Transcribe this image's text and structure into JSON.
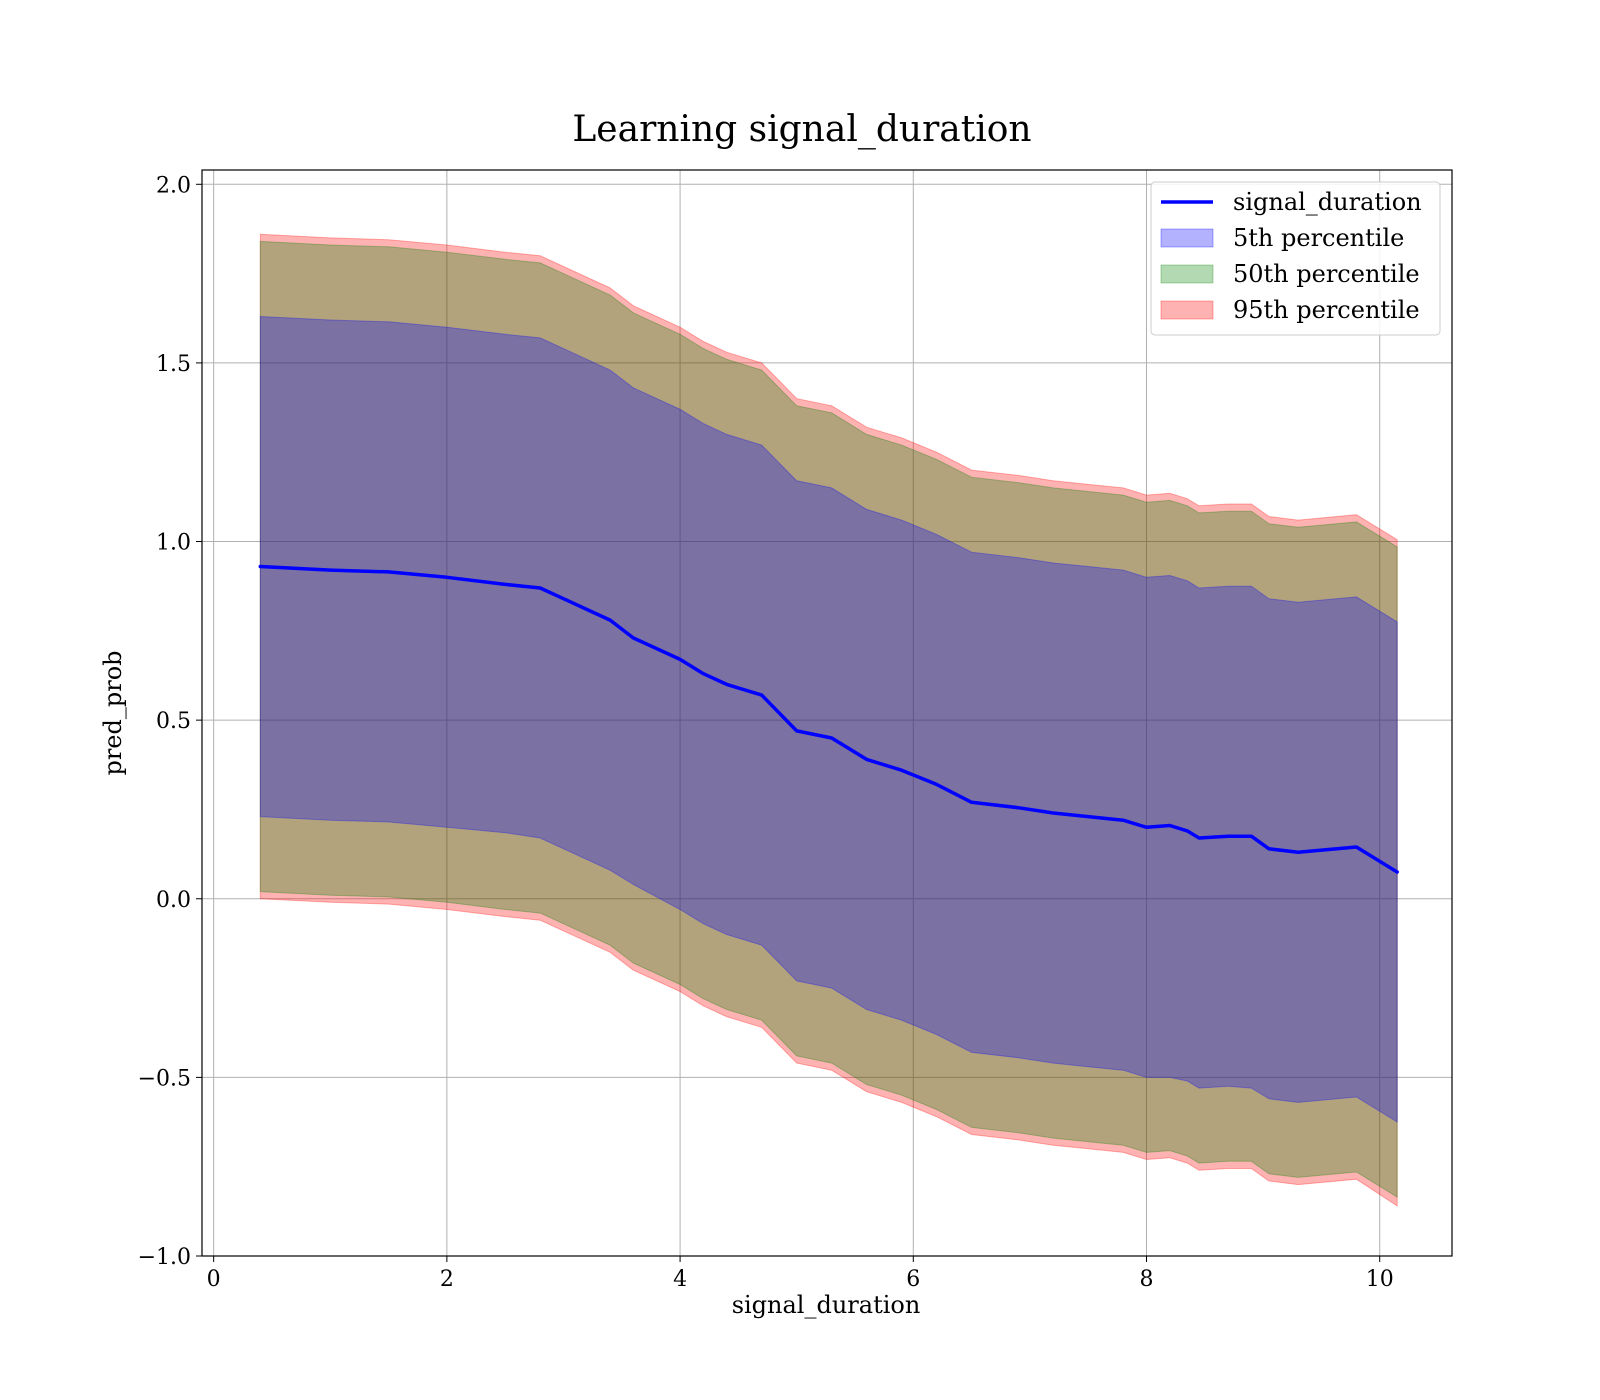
{
  "chart_data": {
    "type": "area",
    "title": "Learning signal_duration",
    "xlabel": "signal_duration",
    "ylabel": "pred_prob",
    "xlim": [
      -0.1,
      10.62
    ],
    "ylim": [
      -1.0,
      2.04
    ],
    "x_ticks": [
      0,
      2,
      4,
      6,
      8,
      10
    ],
    "y_ticks": [
      -1.0,
      -0.5,
      0.0,
      0.5,
      1.0,
      1.5,
      2.0
    ],
    "x_tick_labels": [
      "0",
      "2",
      "4",
      "6",
      "8",
      "10"
    ],
    "y_tick_labels": [
      "−1.0",
      "−0.5",
      "0.0",
      "0.5",
      "1.0",
      "1.5",
      "2.0"
    ],
    "grid": true,
    "legend_position": "top-right",
    "x": [
      0.4,
      1.0,
      1.5,
      2.0,
      2.5,
      2.8,
      3.0,
      3.4,
      3.6,
      4.0,
      4.2,
      4.4,
      4.7,
      5.0,
      5.3,
      5.6,
      5.9,
      6.2,
      6.5,
      6.9,
      7.2,
      7.5,
      7.8,
      8.0,
      8.2,
      8.35,
      8.45,
      8.7,
      8.9,
      9.05,
      9.3,
      9.8,
      10.15
    ],
    "series": [
      {
        "name": "signal_duration",
        "kind": "line",
        "color": "#0000ff",
        "values": [
          0.93,
          0.92,
          0.915,
          0.9,
          0.88,
          0.87,
          0.84,
          0.78,
          0.73,
          0.67,
          0.63,
          0.6,
          0.57,
          0.47,
          0.45,
          0.39,
          0.36,
          0.32,
          0.27,
          0.255,
          0.24,
          0.23,
          0.22,
          0.2,
          0.205,
          0.19,
          0.17,
          0.175,
          0.175,
          0.14,
          0.13,
          0.145,
          0.075
        ]
      },
      {
        "name": "5th percentile",
        "kind": "band",
        "color": "#0000ff",
        "lower": [
          0.23,
          0.22,
          0.215,
          0.2,
          0.185,
          0.17,
          0.14,
          0.08,
          0.04,
          -0.03,
          -0.07,
          -0.1,
          -0.13,
          -0.23,
          -0.25,
          -0.31,
          -0.34,
          -0.38,
          -0.43,
          -0.445,
          -0.46,
          -0.47,
          -0.48,
          -0.5,
          -0.5,
          -0.51,
          -0.53,
          -0.525,
          -0.53,
          -0.56,
          -0.57,
          -0.555,
          -0.625
        ],
        "upper": [
          1.63,
          1.62,
          1.615,
          1.6,
          1.58,
          1.57,
          1.54,
          1.48,
          1.43,
          1.37,
          1.33,
          1.3,
          1.27,
          1.17,
          1.15,
          1.09,
          1.06,
          1.02,
          0.97,
          0.955,
          0.94,
          0.93,
          0.92,
          0.9,
          0.905,
          0.89,
          0.87,
          0.875,
          0.875,
          0.84,
          0.83,
          0.845,
          0.775
        ]
      },
      {
        "name": "50th percentile",
        "kind": "band",
        "color": "#008000",
        "lower": [
          0.02,
          0.01,
          0.005,
          -0.01,
          -0.03,
          -0.04,
          -0.07,
          -0.13,
          -0.18,
          -0.24,
          -0.28,
          -0.31,
          -0.34,
          -0.44,
          -0.46,
          -0.52,
          -0.55,
          -0.59,
          -0.64,
          -0.655,
          -0.67,
          -0.68,
          -0.69,
          -0.71,
          -0.705,
          -0.72,
          -0.74,
          -0.735,
          -0.735,
          -0.77,
          -0.78,
          -0.765,
          -0.835
        ],
        "upper": [
          1.84,
          1.83,
          1.825,
          1.81,
          1.79,
          1.78,
          1.75,
          1.69,
          1.64,
          1.58,
          1.54,
          1.51,
          1.48,
          1.38,
          1.36,
          1.3,
          1.27,
          1.23,
          1.18,
          1.165,
          1.15,
          1.14,
          1.13,
          1.11,
          1.115,
          1.1,
          1.08,
          1.085,
          1.085,
          1.05,
          1.04,
          1.055,
          0.985
        ]
      },
      {
        "name": "95th percentile",
        "kind": "band",
        "color": "#ff0000",
        "lower": [
          0.0,
          -0.01,
          -0.015,
          -0.03,
          -0.05,
          -0.06,
          -0.09,
          -0.15,
          -0.2,
          -0.26,
          -0.3,
          -0.33,
          -0.36,
          -0.46,
          -0.48,
          -0.54,
          -0.57,
          -0.61,
          -0.66,
          -0.675,
          -0.69,
          -0.7,
          -0.71,
          -0.73,
          -0.725,
          -0.74,
          -0.76,
          -0.755,
          -0.755,
          -0.79,
          -0.8,
          -0.785,
          -0.86
        ],
        "upper": [
          1.86,
          1.85,
          1.845,
          1.83,
          1.81,
          1.8,
          1.77,
          1.71,
          1.66,
          1.6,
          1.56,
          1.53,
          1.5,
          1.4,
          1.38,
          1.32,
          1.29,
          1.25,
          1.2,
          1.185,
          1.17,
          1.16,
          1.15,
          1.13,
          1.135,
          1.12,
          1.1,
          1.105,
          1.105,
          1.07,
          1.06,
          1.075,
          1.005
        ]
      }
    ],
    "legend": [
      {
        "label": "signal_duration",
        "kind": "line",
        "color": "#0000ff"
      },
      {
        "label": "5th percentile",
        "kind": "band",
        "color": "#0000ff"
      },
      {
        "label": "50th percentile",
        "kind": "band",
        "color": "#008000"
      },
      {
        "label": "95th percentile",
        "kind": "band",
        "color": "#ff0000"
      }
    ]
  }
}
